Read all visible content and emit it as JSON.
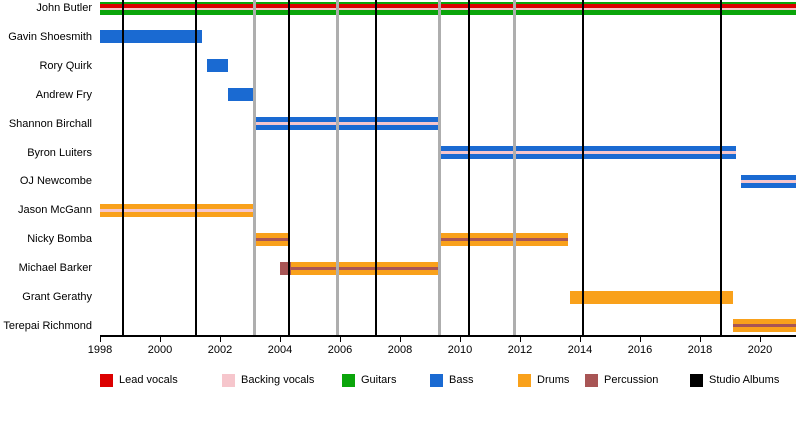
{
  "chart_data": {
    "type": "bar",
    "subtype": "band-members-timeline",
    "title": "",
    "legend_position": "bottom",
    "x_axis": {
      "min": 1998,
      "max": 2021.2,
      "ticks": [
        "1998",
        "2000",
        "2002",
        "2004",
        "2006",
        "2008",
        "2010",
        "2012",
        "2014",
        "2016",
        "2018",
        "2020"
      ]
    },
    "colors": {
      "lead_vocals": "#dc0000",
      "backing_vocals": "#f6c6cc",
      "guitars": "#0ba50b",
      "bass": "#1a6ad2",
      "drums": "#f9a11b",
      "percussion": "#a85555",
      "studio_albums": "#000000",
      "other_releases": "#aeaeae"
    },
    "members": [
      {
        "name": "John Butler",
        "segments": [
          {
            "start": 1998.0,
            "end": 2021.2,
            "layers": [
              {
                "role": "guitars",
                "w": 3
              },
              {
                "role": "lead_vocals",
                "w": 4
              },
              {
                "role": "backing_vocals",
                "w": 2
              },
              {
                "role": "guitars",
                "w": 5
              }
            ]
          }
        ]
      },
      {
        "name": "Gavin Shoesmith",
        "segments": [
          {
            "start": 1998.0,
            "end": 2001.4,
            "layers": [
              {
                "role": "bass",
                "w": 1
              }
            ]
          }
        ]
      },
      {
        "name": "Rory Quirk",
        "segments": [
          {
            "start": 2001.55,
            "end": 2002.25,
            "layers": [
              {
                "role": "bass",
                "w": 1
              }
            ]
          }
        ]
      },
      {
        "name": "Andrew Fry",
        "segments": [
          {
            "start": 2002.25,
            "end": 2003.15,
            "layers": [
              {
                "role": "bass",
                "w": 1
              }
            ]
          }
        ]
      },
      {
        "name": "Shannon Birchall",
        "segments": [
          {
            "start": 2003.15,
            "end": 2009.25,
            "layers": [
              {
                "role": "bass",
                "w": 5
              },
              {
                "role": "backing_vocals",
                "w": 4
              },
              {
                "role": "bass",
                "w": 5
              }
            ]
          }
        ]
      },
      {
        "name": "Byron Luiters",
        "segments": [
          {
            "start": 2009.3,
            "end": 2019.2,
            "layers": [
              {
                "role": "bass",
                "w": 5
              },
              {
                "role": "backing_vocals",
                "w": 4
              },
              {
                "role": "bass",
                "w": 5
              }
            ]
          }
        ]
      },
      {
        "name": "OJ Newcombe",
        "segments": [
          {
            "start": 2019.35,
            "end": 2021.2,
            "layers": [
              {
                "role": "bass",
                "w": 5
              },
              {
                "role": "backing_vocals",
                "w": 4
              },
              {
                "role": "bass",
                "w": 5
              }
            ]
          }
        ]
      },
      {
        "name": "Jason McGann",
        "segments": [
          {
            "start": 1998.0,
            "end": 2003.15,
            "layers": [
              {
                "role": "drums",
                "w": 5
              },
              {
                "role": "backing_vocals",
                "w": 3
              },
              {
                "role": "drums",
                "w": 5
              }
            ]
          }
        ]
      },
      {
        "name": "Nicky Bomba",
        "segments": [
          {
            "start": 2003.15,
            "end": 2004.25,
            "layers": [
              {
                "role": "drums",
                "w": 5
              },
              {
                "role": "percussion",
                "w": 3
              },
              {
                "role": "drums",
                "w": 5
              }
            ]
          },
          {
            "start": 2009.3,
            "end": 2013.6,
            "layers": [
              {
                "role": "drums",
                "w": 5
              },
              {
                "role": "percussion",
                "w": 3
              },
              {
                "role": "drums",
                "w": 5
              }
            ]
          }
        ]
      },
      {
        "name": "Michael Barker",
        "segments": [
          {
            "start": 2004.0,
            "end": 2004.35,
            "layers": [
              {
                "role": "percussion",
                "w": 1
              }
            ]
          },
          {
            "start": 2004.35,
            "end": 2009.3,
            "layers": [
              {
                "role": "drums",
                "w": 5
              },
              {
                "role": "percussion",
                "w": 3
              },
              {
                "role": "drums",
                "w": 5
              }
            ]
          }
        ]
      },
      {
        "name": "Grant Gerathy",
        "segments": [
          {
            "start": 2013.65,
            "end": 2019.1,
            "layers": [
              {
                "role": "drums",
                "w": 1
              }
            ]
          }
        ]
      },
      {
        "name": "Terepai Richmond",
        "segments": [
          {
            "start": 2019.1,
            "end": 2021.2,
            "layers": [
              {
                "role": "drums",
                "w": 5
              },
              {
                "role": "percussion",
                "w": 3
              },
              {
                "role": "drums",
                "w": 5
              }
            ]
          }
        ]
      }
    ],
    "releases": {
      "studio_albums": [
        1998.75,
        2001.2,
        2004.3,
        2007.2,
        2010.3,
        2014.1,
        2018.7
      ],
      "other_releases": [
        2003.15,
        2005.9,
        2009.3,
        2011.8
      ]
    },
    "legend": [
      {
        "label": "Lead vocals",
        "role": "lead_vocals"
      },
      {
        "label": "Backing vocals",
        "role": "backing_vocals"
      },
      {
        "label": "Guitars",
        "role": "guitars"
      },
      {
        "label": "Bass",
        "role": "bass"
      },
      {
        "label": "Drums",
        "role": "drums"
      },
      {
        "label": "Percussion",
        "role": "percussion"
      },
      {
        "label": "Studio Albums",
        "role": "studio_albums"
      }
    ]
  }
}
